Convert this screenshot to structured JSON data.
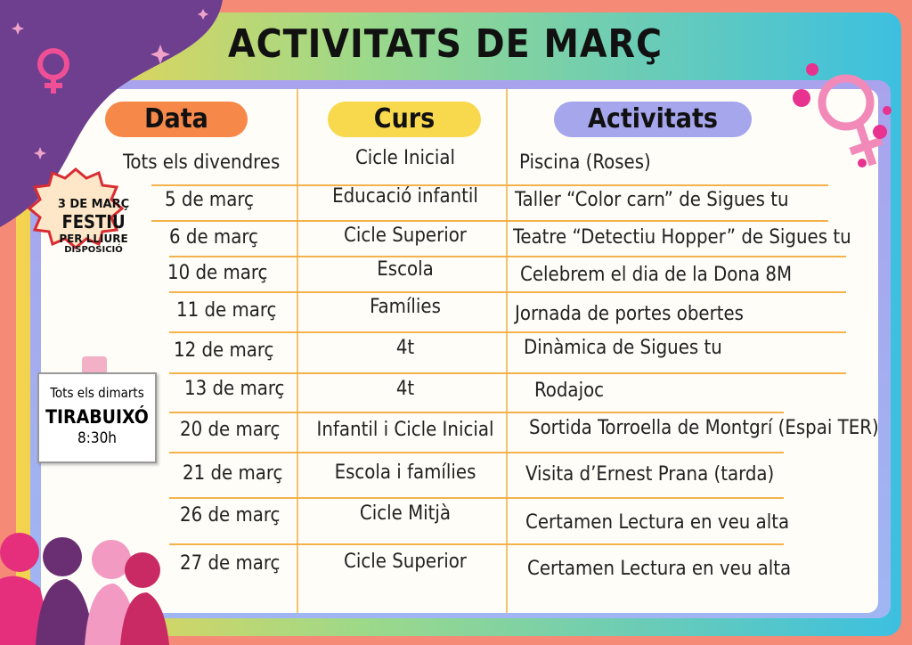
{
  "title": "ACTIVITATS DE MARÇ",
  "headers": [
    "Data",
    "Curs",
    "Activitats"
  ],
  "rows": [
    [
      "Tots els divendres",
      "Cicle Inicial",
      "Piscina (Roses)"
    ],
    [
      "5 de març",
      "Educació infantil",
      "Taller “Color carn” de Sigues tu"
    ],
    [
      "6 de març",
      "Cicle Superior",
      "Teatre “Detectiu Hopper” de Sigues tu"
    ],
    [
      "10 de març",
      "Escola",
      "Celebrem el dia de la Dona 8M"
    ],
    [
      "11 de març",
      "Famílies",
      "Jornada de portes obertes"
    ],
    [
      "12 de març",
      "4t",
      "Dinàmica de Sigues tu"
    ],
    [
      "13 de març",
      "4t",
      "Rodajoc"
    ],
    [
      "20 de març",
      "Infantil i Cicle Inicial",
      "Sortida Torroella de Montgrí (Espai TER)"
    ],
    [
      "21 de març",
      "Escola i famílies",
      "Visita d’Ernest Prana (tarda)"
    ],
    [
      "26 de març",
      "Cicle Mitjà",
      "Certamen Lectura en veu alta"
    ],
    [
      "27 de març",
      "Cicle Superior",
      "Certamen Lectura en veu alta"
    ]
  ],
  "badge": [
    "3 DE MARÇ",
    "FESTIU",
    "PER LLIURE",
    "DISPOSICIÓ"
  ],
  "note": {
    "day": "Tots els dimarts",
    "name": "TIRABUIXÓ",
    "time": "8:30h"
  }
}
